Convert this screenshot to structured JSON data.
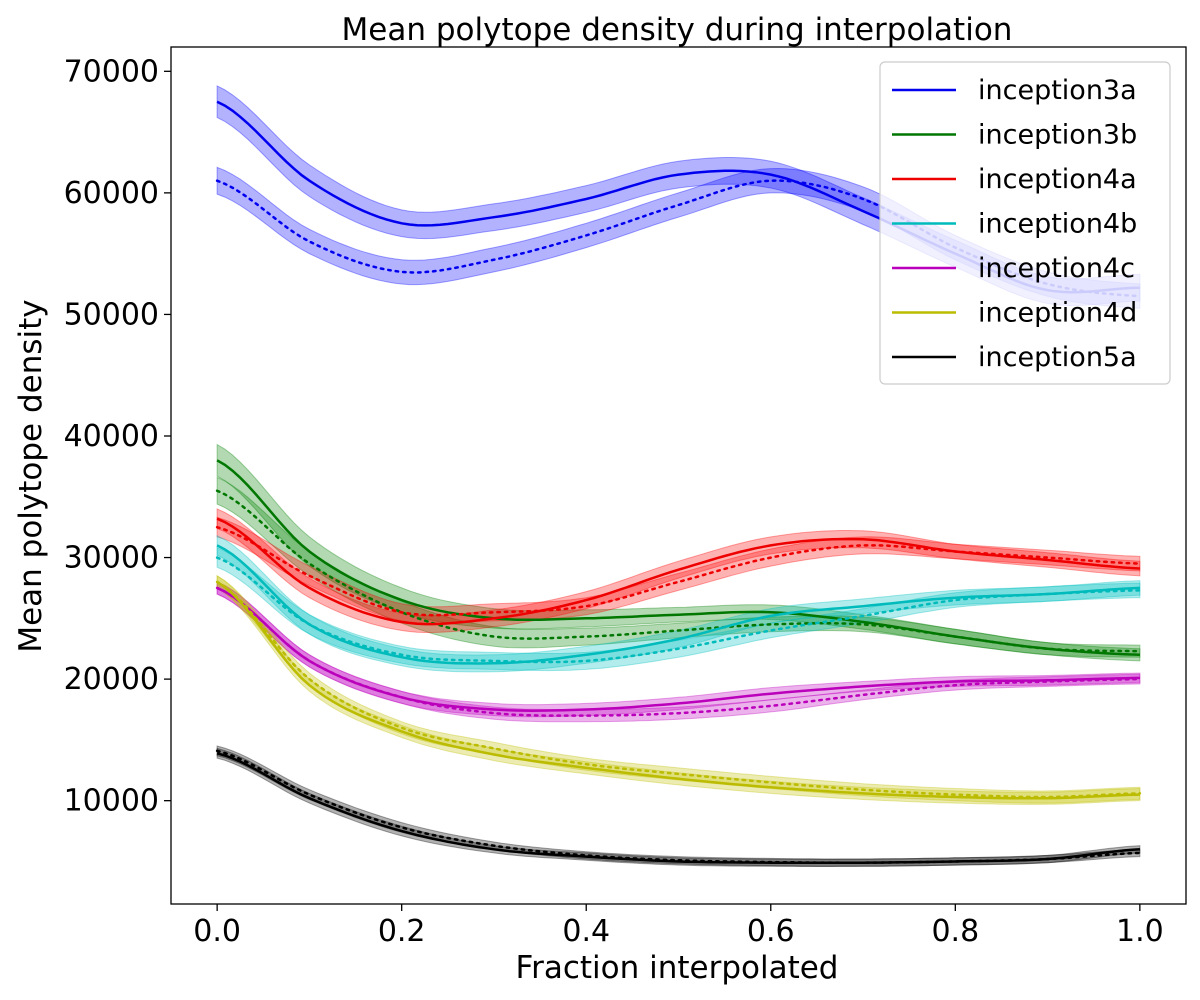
{
  "chart_data": {
    "type": "line",
    "title": "Mean polytope density during interpolation",
    "xlabel": "Fraction interpolated",
    "ylabel": "Mean polytope density",
    "xlim": [
      -0.05,
      1.05
    ],
    "ylim": [
      1500,
      72000
    ],
    "x_ticks": [
      0.0,
      0.2,
      0.4,
      0.6,
      0.8,
      1.0
    ],
    "x_tick_labels": [
      "0.0",
      "0.2",
      "0.4",
      "0.6",
      "0.8",
      "1.0"
    ],
    "y_ticks": [
      10000,
      20000,
      30000,
      40000,
      50000,
      60000,
      70000
    ],
    "y_tick_labels": [
      "10000",
      "20000",
      "30000",
      "40000",
      "50000",
      "60000",
      "70000"
    ],
    "legend_position": "top-right",
    "x": [
      0.0,
      0.1,
      0.2,
      0.3,
      0.4,
      0.5,
      0.6,
      0.7,
      0.8,
      0.9,
      1.0
    ],
    "series": [
      {
        "name": "inception3a",
        "color": "#0000ee",
        "band_color": "#0000ff",
        "solid": [
          67500,
          61000,
          57500,
          58000,
          59500,
          61500,
          61500,
          58500,
          55000,
          52000,
          52200
        ],
        "solid_band": [
          1300,
          1300,
          1100,
          1100,
          1100,
          1100,
          1100,
          1100,
          1100,
          1100,
          1100
        ],
        "dotted": [
          61000,
          56000,
          53500,
          54500,
          56500,
          59000,
          61000,
          59500,
          55500,
          52500,
          51500
        ],
        "dotted_band": [
          1100,
          1000,
          1000,
          1000,
          1000,
          1000,
          1000,
          1000,
          1000,
          1000,
          1000
        ]
      },
      {
        "name": "inception3b",
        "color": "#007700",
        "band_color": "#008000",
        "solid": [
          38000,
          30500,
          26500,
          25000,
          25000,
          25300,
          25500,
          24700,
          23500,
          22500,
          22000
        ],
        "solid_band": [
          1300,
          1200,
          1000,
          800,
          700,
          600,
          600,
          600,
          600,
          500,
          500
        ],
        "dotted": [
          35500,
          29500,
          25500,
          23500,
          23500,
          24000,
          24500,
          24500,
          23500,
          22500,
          22300
        ],
        "dotted_band": [
          1100,
          1000,
          900,
          800,
          700,
          600,
          600,
          600,
          600,
          500,
          500
        ]
      },
      {
        "name": "inception4a",
        "color": "#ee0000",
        "band_color": "#ff0000",
        "solid": [
          33200,
          27500,
          24700,
          25000,
          26500,
          29000,
          31000,
          31500,
          30500,
          29800,
          29100
        ],
        "solid_band": [
          800,
          800,
          700,
          700,
          700,
          700,
          700,
          700,
          600,
          600,
          600
        ],
        "dotted": [
          32500,
          28500,
          25500,
          25500,
          26000,
          28000,
          30000,
          31000,
          30500,
          30000,
          29500
        ],
        "dotted_band": [
          800,
          800,
          700,
          700,
          700,
          700,
          700,
          700,
          600,
          600,
          600
        ]
      },
      {
        "name": "inception4b",
        "color": "#00bbbb",
        "band_color": "#00c0c0",
        "solid": [
          31000,
          24500,
          21800,
          21300,
          22000,
          23300,
          25200,
          26000,
          26700,
          27000,
          27500
        ],
        "solid_band": [
          800,
          800,
          700,
          700,
          700,
          700,
          600,
          600,
          600,
          600,
          600
        ],
        "dotted": [
          30000,
          24500,
          22000,
          21500,
          21500,
          22500,
          24000,
          25200,
          26500,
          27000,
          27300
        ],
        "dotted_band": [
          800,
          800,
          700,
          700,
          700,
          700,
          600,
          600,
          600,
          600,
          600
        ]
      },
      {
        "name": "inception4c",
        "color": "#bb00bb",
        "band_color": "#c000c0",
        "solid": [
          27500,
          21500,
          18500,
          17500,
          17500,
          18000,
          18800,
          19400,
          19800,
          19900,
          20100
        ],
        "solid_band": [
          500,
          500,
          500,
          500,
          500,
          500,
          500,
          400,
          400,
          400,
          400
        ],
        "dotted": [
          27500,
          21500,
          18500,
          17200,
          17000,
          17200,
          17800,
          18700,
          19500,
          19800,
          20000
        ],
        "dotted_band": [
          500,
          500,
          500,
          500,
          500,
          500,
          500,
          400,
          400,
          400,
          400
        ]
      },
      {
        "name": "inception4d",
        "color": "#bbbb00",
        "band_color": "#c0c000",
        "solid": [
          28000,
          19500,
          15700,
          13800,
          12700,
          11800,
          11100,
          10600,
          10300,
          10200,
          10500
        ],
        "solid_band": [
          500,
          500,
          500,
          500,
          500,
          500,
          500,
          500,
          500,
          500,
          500
        ],
        "dotted": [
          28000,
          20000,
          16000,
          14300,
          13000,
          12200,
          11500,
          10900,
          10500,
          10300,
          10600
        ],
        "dotted_band": [
          500,
          500,
          500,
          500,
          500,
          500,
          500,
          500,
          500,
          500,
          500
        ]
      },
      {
        "name": "inception5a",
        "color": "#000000",
        "band_color": "#000000",
        "solid": [
          13900,
          10200,
          7500,
          6000,
          5400,
          5000,
          4900,
          4900,
          5000,
          5200,
          6000
        ],
        "solid_band": [
          400,
          400,
          400,
          300,
          300,
          300,
          300,
          300,
          300,
          300,
          300
        ],
        "dotted": [
          14100,
          10500,
          7800,
          6300,
          5500,
          5100,
          4950,
          4900,
          5000,
          5200,
          5700
        ],
        "dotted_band": [
          400,
          400,
          400,
          300,
          300,
          300,
          300,
          300,
          300,
          300,
          300
        ]
      }
    ]
  }
}
